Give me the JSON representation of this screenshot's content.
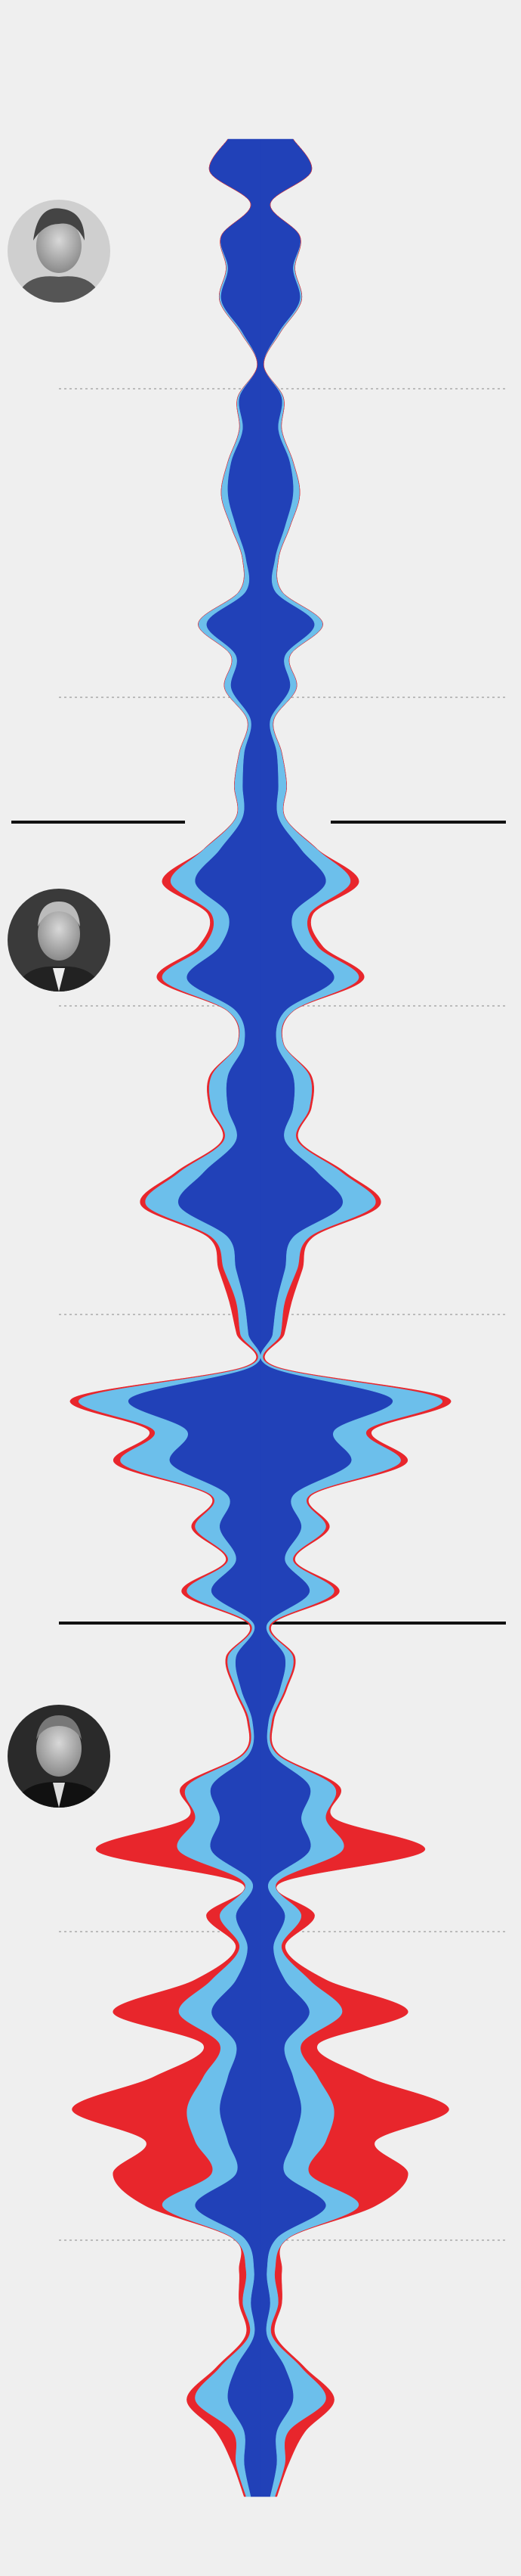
{
  "chart_data": {
    "type": "streamgraph",
    "series": [
      {
        "color": "#2141b8",
        "values": [
          40,
          62,
          12,
          48,
          40,
          48,
          22,
          4,
          26,
          22,
          36,
          40,
          30,
          18,
          18,
          66,
          30,
          36,
          12,
          20,
          22,
          22,
          50,
          80,
          40,
          50,
          90,
          30,
          20,
          40,
          40,
          30,
          70,
          100,
          40,
          30,
          20,
          15,
          10,
          160,
          90,
          110,
          40,
          50,
          30,
          60,
          8,
          30,
          24,
          10,
          14,
          60,
          50,
          60,
          10,
          30,
          16,
          30,
          60,
          30,
          40,
          50,
          40,
          30,
          80,
          20,
          8,
          12,
          8,
          30,
          40,
          20,
          20,
          12
        ]
      },
      {
        "color": "#6cbfeb",
        "values": [
          0,
          0,
          0,
          0,
          2,
          2,
          2,
          0,
          2,
          4,
          4,
          8,
          6,
          4,
          8,
          10,
          6,
          8,
          4,
          6,
          10,
          8,
          20,
          30,
          20,
          20,
          30,
          10,
          8,
          20,
          20,
          15,
          30,
          40,
          20,
          15,
          10,
          10,
          6,
          60,
          40,
          60,
          20,
          30,
          10,
          30,
          4,
          10,
          6,
          4,
          6,
          30,
          30,
          40,
          10,
          20,
          10,
          30,
          40,
          20,
          30,
          40,
          40,
          30,
          40,
          14,
          10,
          10,
          6,
          20,
          40,
          14,
          10,
          6
        ]
      },
      {
        "color": "#e8262c",
        "values": [
          0,
          0,
          0,
          0,
          0,
          0,
          0,
          0,
          0,
          0,
          0,
          0,
          0,
          0,
          0,
          0,
          0,
          0,
          0,
          0,
          0,
          0,
          0,
          10,
          4,
          6,
          6,
          0,
          0,
          2,
          2,
          2,
          4,
          6,
          4,
          6,
          8,
          4,
          2,
          10,
          6,
          8,
          2,
          4,
          2,
          6,
          2,
          2,
          2,
          2,
          2,
          6,
          10,
          100,
          4,
          16,
          4,
          20,
          80,
          20,
          60,
          140,
          60,
          120,
          20,
          0,
          8,
          4,
          4,
          4,
          10,
          20,
          4,
          2
        ]
      }
    ]
  }
}
